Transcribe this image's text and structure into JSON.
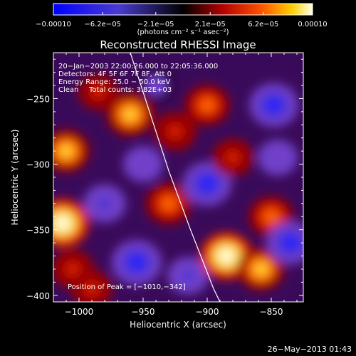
{
  "chart_data": {
    "type": "heatmap",
    "title": "Reconstructed RHESSI Image",
    "xlabel": "Heliocentric X (arcsec)",
    "ylabel": "Heliocentric Y (arcsec)",
    "xlim": [
      -1020,
      -825
    ],
    "ylim": [
      -405,
      -215
    ],
    "x_ticks": [
      {
        "value": -1000,
        "label": "−1000"
      },
      {
        "value": -950,
        "label": "−950"
      },
      {
        "value": -900,
        "label": "−900"
      },
      {
        "value": -850,
        "label": "−850"
      }
    ],
    "y_ticks": [
      {
        "value": -250,
        "label": "−250"
      },
      {
        "value": -300,
        "label": "−300"
      },
      {
        "value": -350,
        "label": "−350"
      },
      {
        "value": -400,
        "label": "−400"
      }
    ],
    "colorbar": {
      "min": -0.0001,
      "max": 0.0001,
      "tick_values": [
        -0.0001,
        -6.2e-05,
        -2.1e-05,
        2.1e-05,
        6.2e-05,
        0.0001
      ],
      "tick_labels": [
        "−0.00010",
        "−6.2e−05",
        "−2.1e−05",
        "2.1e−05",
        "6.2e−05",
        "0.00010"
      ],
      "unit_label": "(photons cm⁻² s⁻¹ asec⁻²)"
    },
    "annotations": {
      "time": "20−Jan−2003 22:00:26.000 to 22:05:36.000",
      "detectors": "Detectors: 4F 5F 6F 7F 8F, Att 0",
      "energy": "Energy Range: 25.0 − 50.0 keV",
      "clean": "Clean",
      "counts": "Total counts: 3.82E+03",
      "peak": "Position of Peak = [−1010,−342]"
    },
    "limb_line": [
      {
        "x": -960,
        "y": -215
      },
      {
        "x": -945,
        "y": -260
      },
      {
        "x": -930,
        "y": -305
      },
      {
        "x": -913,
        "y": -350
      },
      {
        "x": -895,
        "y": -395
      },
      {
        "x": -890,
        "y": -405
      }
    ],
    "blobs": [
      {
        "x": -1013,
        "y": -345,
        "v": 1.0
      },
      {
        "x": -1010,
        "y": -290,
        "v": 0.75
      },
      {
        "x": -1005,
        "y": -380,
        "v": 0.55
      },
      {
        "x": -985,
        "y": -245,
        "v": 0.45
      },
      {
        "x": -980,
        "y": -330,
        "v": -0.55
      },
      {
        "x": -960,
        "y": -262,
        "v": 0.8
      },
      {
        "x": -955,
        "y": -375,
        "v": -0.85
      },
      {
        "x": -950,
        "y": -300,
        "v": -0.45
      },
      {
        "x": -930,
        "y": -330,
        "v": 0.7
      },
      {
        "x": -925,
        "y": -275,
        "v": 0.55
      },
      {
        "x": -915,
        "y": -385,
        "v": -0.5
      },
      {
        "x": -900,
        "y": -255,
        "v": 0.65
      },
      {
        "x": -900,
        "y": -315,
        "v": -0.8
      },
      {
        "x": -885,
        "y": -370,
        "v": 0.95
      },
      {
        "x": -880,
        "y": -295,
        "v": 0.5
      },
      {
        "x": -858,
        "y": -380,
        "v": 0.75
      },
      {
        "x": -850,
        "y": -340,
        "v": 0.65
      },
      {
        "x": -848,
        "y": -255,
        "v": -0.8
      },
      {
        "x": -845,
        "y": -295,
        "v": -0.45
      },
      {
        "x": -835,
        "y": -360,
        "v": -0.75
      },
      {
        "x": -940,
        "y": -240,
        "v": -0.35
      },
      {
        "x": -990,
        "y": -395,
        "v": 0.5
      }
    ],
    "grid": false,
    "legend": "none"
  },
  "footer_date": "26−May−2013 01:43"
}
